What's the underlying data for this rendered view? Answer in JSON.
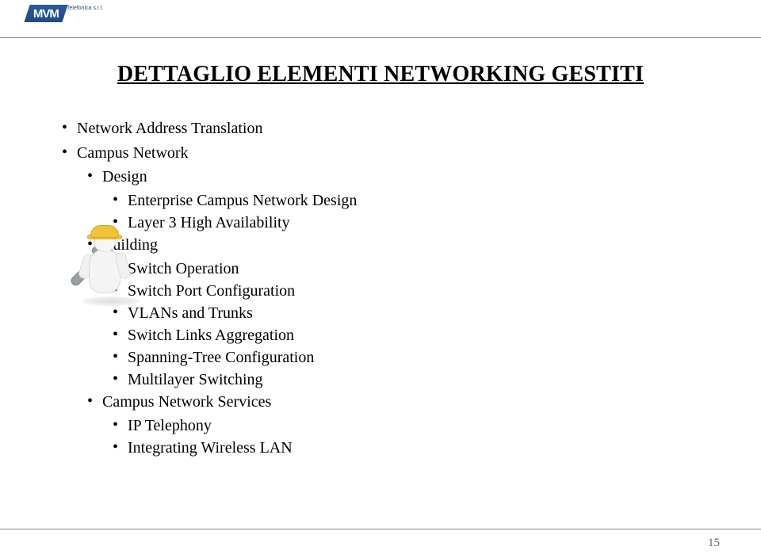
{
  "header": {
    "company_name": "Telefonica s.r.l.",
    "logo_text": "MVM"
  },
  "title": "DETTAGLIO ELEMENTI NETWORKING GESTITI",
  "bullets": [
    {
      "label": "Network Address Translation"
    },
    {
      "label": "Campus Network",
      "children": [
        {
          "label": "Design",
          "children": [
            {
              "label": "Enterprise Campus Network Design"
            },
            {
              "label": "Layer 3 High Availability"
            }
          ]
        },
        {
          "label": "Building",
          "children": [
            {
              "label": "Switch Operation"
            },
            {
              "label": "Switch Port Configuration"
            },
            {
              "label": "VLANs and Trunks"
            },
            {
              "label": "Switch Links Aggregation"
            },
            {
              "label": "Spanning-Tree Configuration"
            },
            {
              "label": "Multilayer Switching"
            }
          ]
        },
        {
          "label": "Campus Network Services",
          "children": [
            {
              "label": "IP Telephony"
            },
            {
              "label": "Integrating Wireless LAN"
            }
          ]
        }
      ]
    }
  ],
  "figure": {
    "description": "construction-worker-with-wrench",
    "hat_color": "#f2c23a",
    "body_color": "#f4f4f4",
    "wrench_color": "#9aa0a3"
  },
  "page_number": "15",
  "colors": {
    "text": "#000000",
    "rule": "#8a8a8a",
    "page_num": "#666666",
    "logo_bg": "#1c4a87"
  }
}
